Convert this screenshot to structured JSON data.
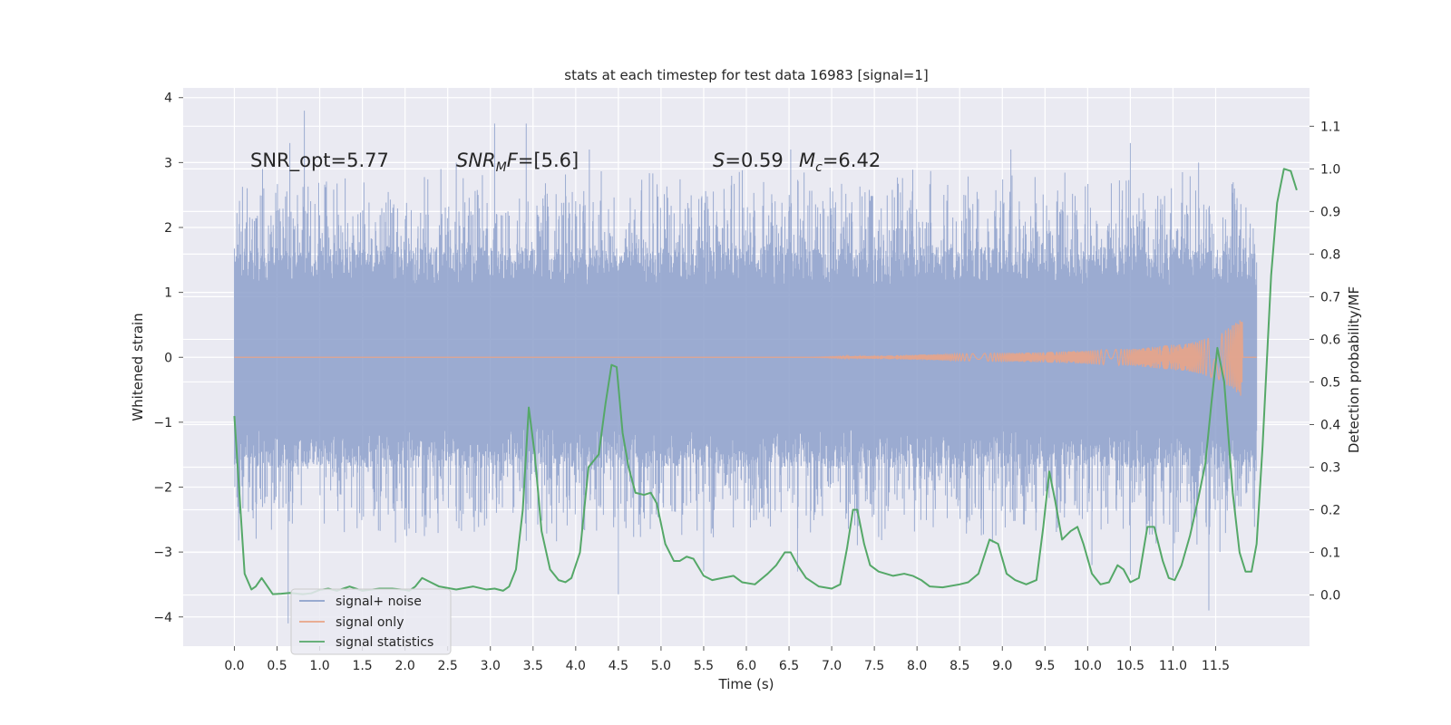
{
  "chart_data": {
    "type": "line",
    "title": "stats at each timestep for test data 16983 [signal=1]",
    "xlabel": "Time (s)",
    "ylabel": "Whitened strain",
    "y2label": "Detection probability/MF",
    "xlim": [
      -0.6,
      12.6
    ],
    "ylim": [
      -4.45,
      4.15
    ],
    "y2lim": [
      -0.12,
      1.19
    ],
    "x_ticks": [
      "0.0",
      "0.5",
      "1.0",
      "1.5",
      "2.0",
      "2.5",
      "3.0",
      "3.5",
      "4.0",
      "4.5",
      "5.0",
      "5.5",
      "6.0",
      "6.5",
      "7.0",
      "7.5",
      "8.0",
      "8.5",
      "9.0",
      "9.5",
      "10.0",
      "10.5",
      "11.0",
      "11.5"
    ],
    "y_ticks": [
      "−4",
      "−3",
      "−2",
      "−1",
      "0",
      "1",
      "2",
      "3",
      "4"
    ],
    "y2_ticks": [
      "0.0",
      "0.1",
      "0.2",
      "0.3",
      "0.4",
      "0.5",
      "0.6",
      "0.7",
      "0.8",
      "0.9",
      "1.0",
      "1.1"
    ],
    "grid": true,
    "legend_position": "lower-left",
    "legend": [
      "signal+ noise",
      "signal only",
      "signal statistics"
    ],
    "colors": {
      "noise": "#8da0cb",
      "signal": "#e9a487",
      "stats": "#55a868",
      "background": "#eaeaf2",
      "grid": "#ffffff"
    },
    "annotations": {
      "snr_opt": "SNR_opt=5.77",
      "snr_mf_main": "SNR",
      "snr_mf_sub": "M",
      "snr_mf_italic": "F",
      "snr_mf_value": "=[5.6]",
      "s_symbol": "S",
      "s_value": "=0.59",
      "mc_symbol": "M",
      "mc_sub": "c",
      "mc_value": "=6.42"
    },
    "series": [
      {
        "name": "signal+ noise",
        "axis": "left",
        "x_start": 0.0,
        "x_end": 11.98,
        "core_envelope": [
          -1.1,
          1.1
        ],
        "notable_peaks": [
          {
            "x": 0.33,
            "y": 2.9
          },
          {
            "x": 0.65,
            "y": 3.3
          },
          {
            "x": 0.82,
            "y": 3.8
          },
          {
            "x": 2.42,
            "y": 2.9
          },
          {
            "x": 2.6,
            "y": 3.0
          },
          {
            "x": 3.05,
            "y": 3.6
          },
          {
            "x": 3.42,
            "y": 3.6
          },
          {
            "x": 4.16,
            "y": 3.2
          },
          {
            "x": 6.52,
            "y": 3.2
          },
          {
            "x": 9.1,
            "y": 3.2
          },
          {
            "x": 10.5,
            "y": 3.3
          },
          {
            "x": 11.3,
            "y": 3.0
          },
          {
            "x": 0.63,
            "y": -4.1
          },
          {
            "x": 4.5,
            "y": -3.65
          },
          {
            "x": 5.5,
            "y": -3.3
          },
          {
            "x": 6.6,
            "y": -3.3
          },
          {
            "x": 10.05,
            "y": -3.2
          },
          {
            "x": 10.5,
            "y": -3.35
          },
          {
            "x": 11.0,
            "y": -3.4
          },
          {
            "x": 11.42,
            "y": -3.9
          },
          {
            "x": 11.55,
            "y": -3.0
          }
        ]
      },
      {
        "name": "signal only",
        "axis": "left",
        "x_start": 0.0,
        "x_end": 11.98,
        "chirp_start": 6.7,
        "amplitude_points": [
          [
            6.7,
            0.0
          ],
          [
            8.0,
            0.04
          ],
          [
            9.5,
            0.08
          ],
          [
            10.5,
            0.13
          ],
          [
            11.2,
            0.22
          ],
          [
            11.55,
            0.35
          ],
          [
            11.8,
            0.6
          ]
        ],
        "peak_x": 11.82
      },
      {
        "name": "signal statistics",
        "axis": "right",
        "points": [
          [
            0.0,
            0.42
          ],
          [
            0.12,
            0.05
          ],
          [
            0.2,
            0.013
          ],
          [
            0.25,
            0.02
          ],
          [
            0.32,
            0.04
          ],
          [
            0.45,
            0.002
          ],
          [
            0.55,
            0.003
          ],
          [
            0.65,
            0.005
          ],
          [
            0.8,
            0.002
          ],
          [
            0.9,
            0.004
          ],
          [
            1.0,
            0.012
          ],
          [
            1.1,
            0.015
          ],
          [
            1.2,
            0.01
          ],
          [
            1.35,
            0.02
          ],
          [
            1.5,
            0.01
          ],
          [
            1.7,
            0.015
          ],
          [
            1.85,
            0.015
          ],
          [
            2.0,
            0.012
          ],
          [
            2.05,
            0.01
          ],
          [
            2.12,
            0.02
          ],
          [
            2.2,
            0.04
          ],
          [
            2.3,
            0.03
          ],
          [
            2.4,
            0.02
          ],
          [
            2.6,
            0.013
          ],
          [
            2.8,
            0.02
          ],
          [
            2.95,
            0.013
          ],
          [
            3.05,
            0.015
          ],
          [
            3.15,
            0.01
          ],
          [
            3.22,
            0.02
          ],
          [
            3.3,
            0.06
          ],
          [
            3.38,
            0.2
          ],
          [
            3.45,
            0.44
          ],
          [
            3.52,
            0.33
          ],
          [
            3.6,
            0.15
          ],
          [
            3.7,
            0.06
          ],
          [
            3.8,
            0.035
          ],
          [
            3.88,
            0.03
          ],
          [
            3.95,
            0.04
          ],
          [
            4.05,
            0.1
          ],
          [
            4.15,
            0.3
          ],
          [
            4.27,
            0.33
          ],
          [
            4.35,
            0.45
          ],
          [
            4.42,
            0.54
          ],
          [
            4.48,
            0.535
          ],
          [
            4.55,
            0.38
          ],
          [
            4.62,
            0.3
          ],
          [
            4.7,
            0.24
          ],
          [
            4.8,
            0.235
          ],
          [
            4.88,
            0.24
          ],
          [
            4.95,
            0.215
          ],
          [
            5.05,
            0.12
          ],
          [
            5.15,
            0.08
          ],
          [
            5.22,
            0.08
          ],
          [
            5.3,
            0.09
          ],
          [
            5.38,
            0.085
          ],
          [
            5.5,
            0.045
          ],
          [
            5.6,
            0.035
          ],
          [
            5.72,
            0.04
          ],
          [
            5.85,
            0.045
          ],
          [
            5.95,
            0.03
          ],
          [
            6.1,
            0.025
          ],
          [
            6.25,
            0.05
          ],
          [
            6.35,
            0.07
          ],
          [
            6.45,
            0.1
          ],
          [
            6.52,
            0.1
          ],
          [
            6.6,
            0.07
          ],
          [
            6.7,
            0.04
          ],
          [
            6.85,
            0.02
          ],
          [
            7.0,
            0.015
          ],
          [
            7.1,
            0.025
          ],
          [
            7.18,
            0.11
          ],
          [
            7.25,
            0.2
          ],
          [
            7.3,
            0.2
          ],
          [
            7.38,
            0.12
          ],
          [
            7.45,
            0.07
          ],
          [
            7.55,
            0.055
          ],
          [
            7.72,
            0.045
          ],
          [
            7.85,
            0.05
          ],
          [
            7.95,
            0.045
          ],
          [
            8.05,
            0.035
          ],
          [
            8.15,
            0.02
          ],
          [
            8.3,
            0.018
          ],
          [
            8.5,
            0.025
          ],
          [
            8.6,
            0.03
          ],
          [
            8.72,
            0.05
          ],
          [
            8.85,
            0.13
          ],
          [
            8.95,
            0.12
          ],
          [
            9.05,
            0.05
          ],
          [
            9.15,
            0.035
          ],
          [
            9.28,
            0.025
          ],
          [
            9.4,
            0.035
          ],
          [
            9.48,
            0.16
          ],
          [
            9.55,
            0.29
          ],
          [
            9.62,
            0.22
          ],
          [
            9.7,
            0.13
          ],
          [
            9.8,
            0.15
          ],
          [
            9.88,
            0.16
          ],
          [
            9.95,
            0.12
          ],
          [
            10.05,
            0.05
          ],
          [
            10.15,
            0.025
          ],
          [
            10.25,
            0.03
          ],
          [
            10.35,
            0.07
          ],
          [
            10.42,
            0.06
          ],
          [
            10.5,
            0.03
          ],
          [
            10.6,
            0.04
          ],
          [
            10.7,
            0.16
          ],
          [
            10.78,
            0.16
          ],
          [
            10.88,
            0.08
          ],
          [
            10.95,
            0.04
          ],
          [
            11.02,
            0.035
          ],
          [
            11.1,
            0.07
          ],
          [
            11.2,
            0.14
          ],
          [
            11.3,
            0.23
          ],
          [
            11.38,
            0.31
          ],
          [
            11.45,
            0.45
          ],
          [
            11.52,
            0.58
          ],
          [
            11.6,
            0.5
          ],
          [
            11.7,
            0.24
          ],
          [
            11.78,
            0.1
          ],
          [
            11.85,
            0.055
          ],
          [
            11.92,
            0.055
          ],
          [
            11.98,
            0.12
          ],
          [
            12.05,
            0.35
          ],
          [
            12.15,
            0.75
          ],
          [
            12.22,
            0.92
          ],
          [
            12.3,
            1.0
          ],
          [
            12.38,
            0.995
          ],
          [
            12.45,
            0.95
          ]
        ]
      }
    ]
  }
}
